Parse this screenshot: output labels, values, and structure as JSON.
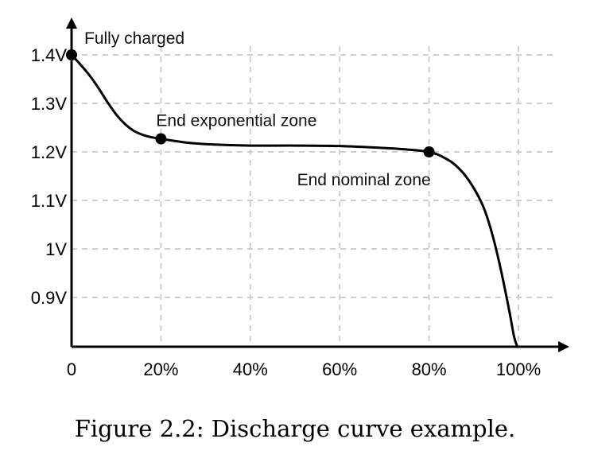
{
  "chart_data": {
    "type": "line",
    "title": "",
    "xlabel": "",
    "ylabel": "",
    "x_ticks": [
      {
        "value": 0,
        "label": "0"
      },
      {
        "value": 20,
        "label": "20%"
      },
      {
        "value": 40,
        "label": "40%"
      },
      {
        "value": 60,
        "label": "60%"
      },
      {
        "value": 80,
        "label": "80%"
      },
      {
        "value": 100,
        "label": "100%"
      }
    ],
    "y_ticks": [
      {
        "value": 0.9,
        "label": "0.9V"
      },
      {
        "value": 1.0,
        "label": "1V"
      },
      {
        "value": 1.1,
        "label": "1.1V"
      },
      {
        "value": 1.2,
        "label": "1.2V"
      },
      {
        "value": 1.3,
        "label": "1.3V"
      },
      {
        "value": 1.4,
        "label": "1.4V"
      }
    ],
    "xlim": [
      0,
      110
    ],
    "ylim": [
      0.8,
      1.5
    ],
    "grid": true,
    "series": [
      {
        "x": [
          0,
          2,
          4,
          6,
          8,
          10,
          12,
          14,
          16,
          18,
          20,
          25,
          30,
          40,
          50,
          60,
          70,
          75,
          80,
          83,
          86,
          89,
          92,
          94,
          96,
          98,
          99,
          99.7,
          100
        ],
        "y": [
          1.4,
          1.38,
          1.358,
          1.332,
          1.303,
          1.277,
          1.257,
          1.243,
          1.235,
          1.23,
          1.227,
          1.22,
          1.216,
          1.213,
          1.213,
          1.212,
          1.208,
          1.205,
          1.2,
          1.19,
          1.172,
          1.14,
          1.09,
          1.035,
          0.96,
          0.87,
          0.82,
          0.8,
          0.8
        ]
      }
    ],
    "points": [
      {
        "x": 0,
        "y": 1.4,
        "label": "Fully charged"
      },
      {
        "x": 20,
        "y": 1.227,
        "label": "End exponential zone"
      },
      {
        "x": 80,
        "y": 1.2,
        "label": "End nominal zone"
      }
    ]
  },
  "caption": "Figure 2.2: Discharge curve example."
}
